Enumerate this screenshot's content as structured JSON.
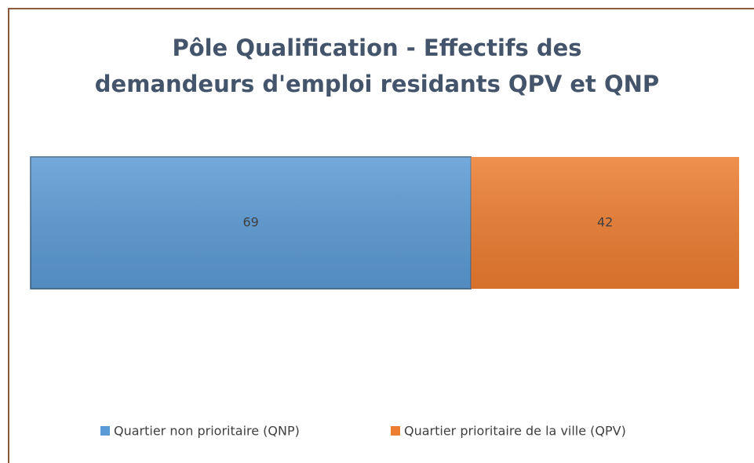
{
  "chart_data": {
    "type": "stacked-bar-horizontal",
    "title": "Pôle Qualification - Effectifs des demandeurs d'emploi residants QPV et QNP",
    "categories": [
      null
    ],
    "series": [
      {
        "name": "Quartier non prioritaire (QNP)",
        "color": "#5b9bd5",
        "values": [
          69
        ]
      },
      {
        "name": "Quartier prioritaire de la ville (QPV)",
        "color": "#ed7d31",
        "values": [
          42
        ]
      }
    ],
    "xlim": [
      0,
      111
    ],
    "legend": "bottom"
  }
}
